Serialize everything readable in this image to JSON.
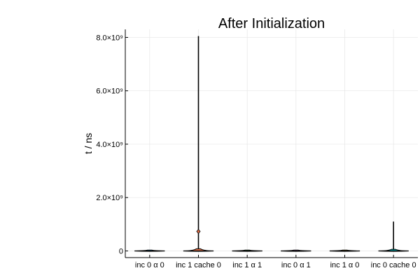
{
  "chart_data": {
    "type": "violin",
    "title": "After Initialization",
    "xlabel": "",
    "ylabel": "t / ns",
    "categories": [
      "inc 0 α 0",
      "inc 1 cache 0",
      "inc 1 α 1",
      "inc 0 α 1",
      "inc 1 α 0",
      "inc 0 cache 0"
    ],
    "ylim": [
      -250000000,
      8300000000
    ],
    "yticks": [
      {
        "value": 0,
        "label": "0"
      },
      {
        "value": 2000000000,
        "label": "2.0×10⁹"
      },
      {
        "value": 4000000000,
        "label": "4.0×10⁹"
      },
      {
        "value": 6000000000,
        "label": "6.0×10⁹"
      },
      {
        "value": 8000000000,
        "label": "8.0×10⁹"
      }
    ],
    "grid": true,
    "legend": "none",
    "series": [
      {
        "category": "inc 0 α 0",
        "color": "#009AFA",
        "min": 0,
        "max": 5000000,
        "median": 1000000
      },
      {
        "category": "inc 1 cache 0",
        "color": "#E36F47",
        "min": 0,
        "max": 8050000000,
        "median": 30000000,
        "outlier": 730000000,
        "body_height": 80000000
      },
      {
        "category": "inc 1 α 1",
        "color": "#3EA44E",
        "min": 0,
        "max": 10000000,
        "median": 2000000
      },
      {
        "category": "inc 0 α 1",
        "color": "#C271D2",
        "min": 0,
        "max": 5000000,
        "median": 1000000
      },
      {
        "category": "inc 1 α 0",
        "color": "#AC8D18",
        "min": 0,
        "max": 8000000,
        "median": 2000000
      },
      {
        "category": "inc 0 cache 0",
        "color": "#00A9AD",
        "min": 0,
        "max": 1100000000,
        "median": 20000000,
        "body_height": 60000000
      }
    ]
  }
}
